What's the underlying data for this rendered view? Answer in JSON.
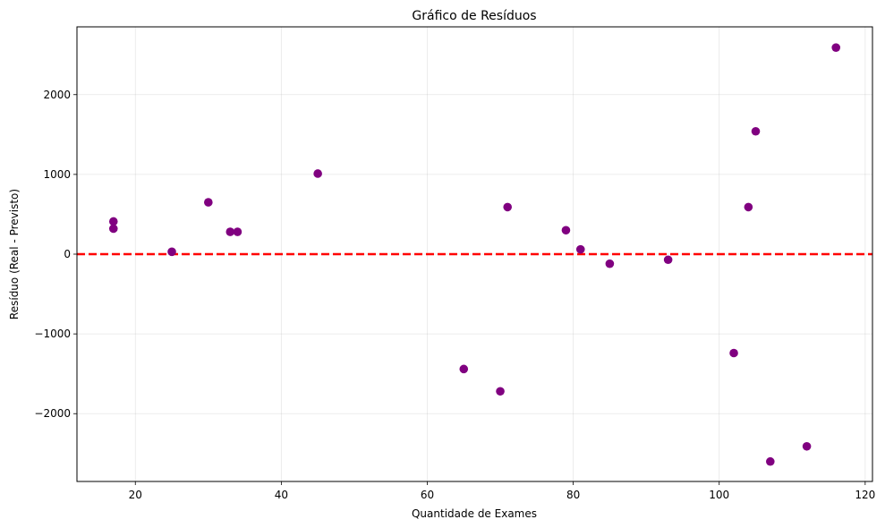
{
  "chart_data": {
    "type": "scatter",
    "title": "Gráfico de Resíduos",
    "xlabel": "Quantidade de Exames",
    "ylabel": "Resíduo (Real - Previsto)",
    "xlim": [
      12,
      121
    ],
    "ylim": [
      -2850,
      2850
    ],
    "xticks": [
      20,
      40,
      60,
      80,
      100,
      120
    ],
    "yticks": [
      -2000,
      -1000,
      0,
      1000,
      2000
    ],
    "ytick_labels": [
      "−2000",
      "−1000",
      "0",
      "1000",
      "2000"
    ],
    "grid": true,
    "point_color": "#800080",
    "reference_line": {
      "y": 0,
      "color": "#ff0000",
      "style": "dashed"
    },
    "points": [
      {
        "x": 17,
        "y": 410
      },
      {
        "x": 17,
        "y": 320
      },
      {
        "x": 25,
        "y": 30
      },
      {
        "x": 30,
        "y": 650
      },
      {
        "x": 33,
        "y": 280
      },
      {
        "x": 34,
        "y": 280
      },
      {
        "x": 45,
        "y": 1010
      },
      {
        "x": 65,
        "y": -1440
      },
      {
        "x": 70,
        "y": -1720
      },
      {
        "x": 71,
        "y": 590
      },
      {
        "x": 79,
        "y": 300
      },
      {
        "x": 81,
        "y": 60
      },
      {
        "x": 85,
        "y": -120
      },
      {
        "x": 93,
        "y": -70
      },
      {
        "x": 102,
        "y": -1240
      },
      {
        "x": 104,
        "y": 590
      },
      {
        "x": 105,
        "y": 1540
      },
      {
        "x": 107,
        "y": -2600
      },
      {
        "x": 112,
        "y": -2410
      },
      {
        "x": 116,
        "y": 2590
      }
    ]
  }
}
